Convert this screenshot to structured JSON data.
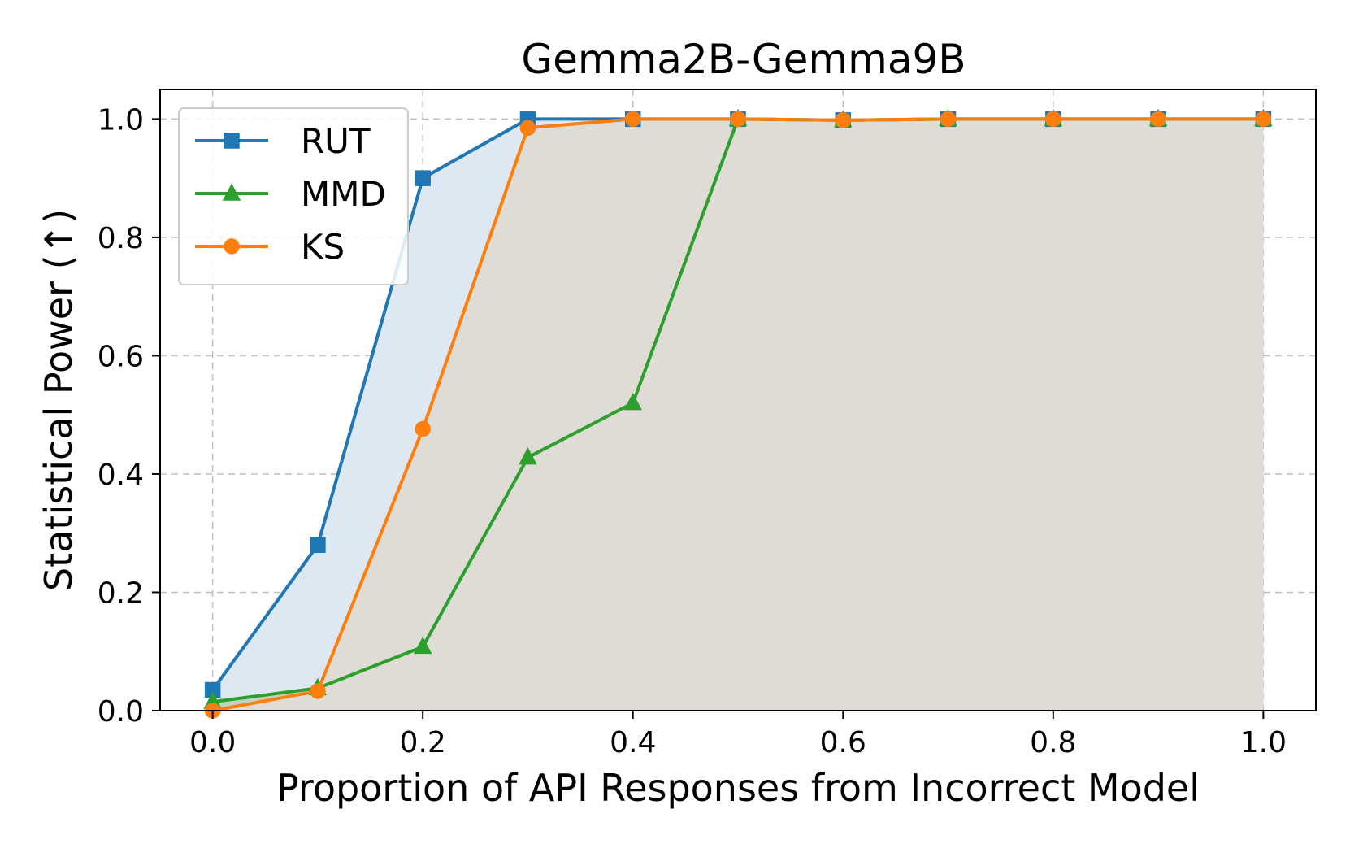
{
  "chart_data": {
    "type": "line",
    "title": "Gemma2B-Gemma9B",
    "xlabel": "Proportion of API Responses from Incorrect Model",
    "ylabel": "Statistical Power (↑)",
    "xlim": [
      -0.05,
      1.05
    ],
    "ylim": [
      0.0,
      1.05
    ],
    "xticks": [
      0.0,
      0.2,
      0.4,
      0.6,
      0.8,
      1.0
    ],
    "xtick_labels": [
      "0.0",
      "0.2",
      "0.4",
      "0.6",
      "0.8",
      "1.0"
    ],
    "yticks": [
      0.0,
      0.2,
      0.4,
      0.6,
      0.8,
      1.0
    ],
    "ytick_labels": [
      "0.0",
      "0.2",
      "0.4",
      "0.6",
      "0.8",
      "1.0"
    ],
    "grid": true,
    "legend_position": "top-left",
    "x": [
      0.0,
      0.1,
      0.2,
      0.3,
      0.4,
      0.5,
      0.6,
      0.7,
      0.8,
      0.9,
      1.0
    ],
    "series": [
      {
        "name": "RUT",
        "color": "#1f77b4",
        "fill": "#dde8f3",
        "marker": "square",
        "values": [
          0.035,
          0.28,
          0.9,
          1.0,
          1.0,
          1.0,
          0.998,
          1.0,
          1.0,
          1.0,
          1.0
        ]
      },
      {
        "name": "MMD",
        "color": "#2ca02c",
        "fill": "#c2d3bf",
        "marker": "triangle",
        "values": [
          0.015,
          0.038,
          0.108,
          0.428,
          0.52,
          1.0,
          0.998,
          1.0,
          1.0,
          1.0,
          1.0
        ]
      },
      {
        "name": "KS",
        "color": "#ff7f0e",
        "fill": "#dfdcd6",
        "marker": "circle",
        "values": [
          0.0,
          0.033,
          0.476,
          0.985,
          1.0,
          1.0,
          0.998,
          1.0,
          1.0,
          1.0,
          1.0
        ]
      }
    ]
  }
}
